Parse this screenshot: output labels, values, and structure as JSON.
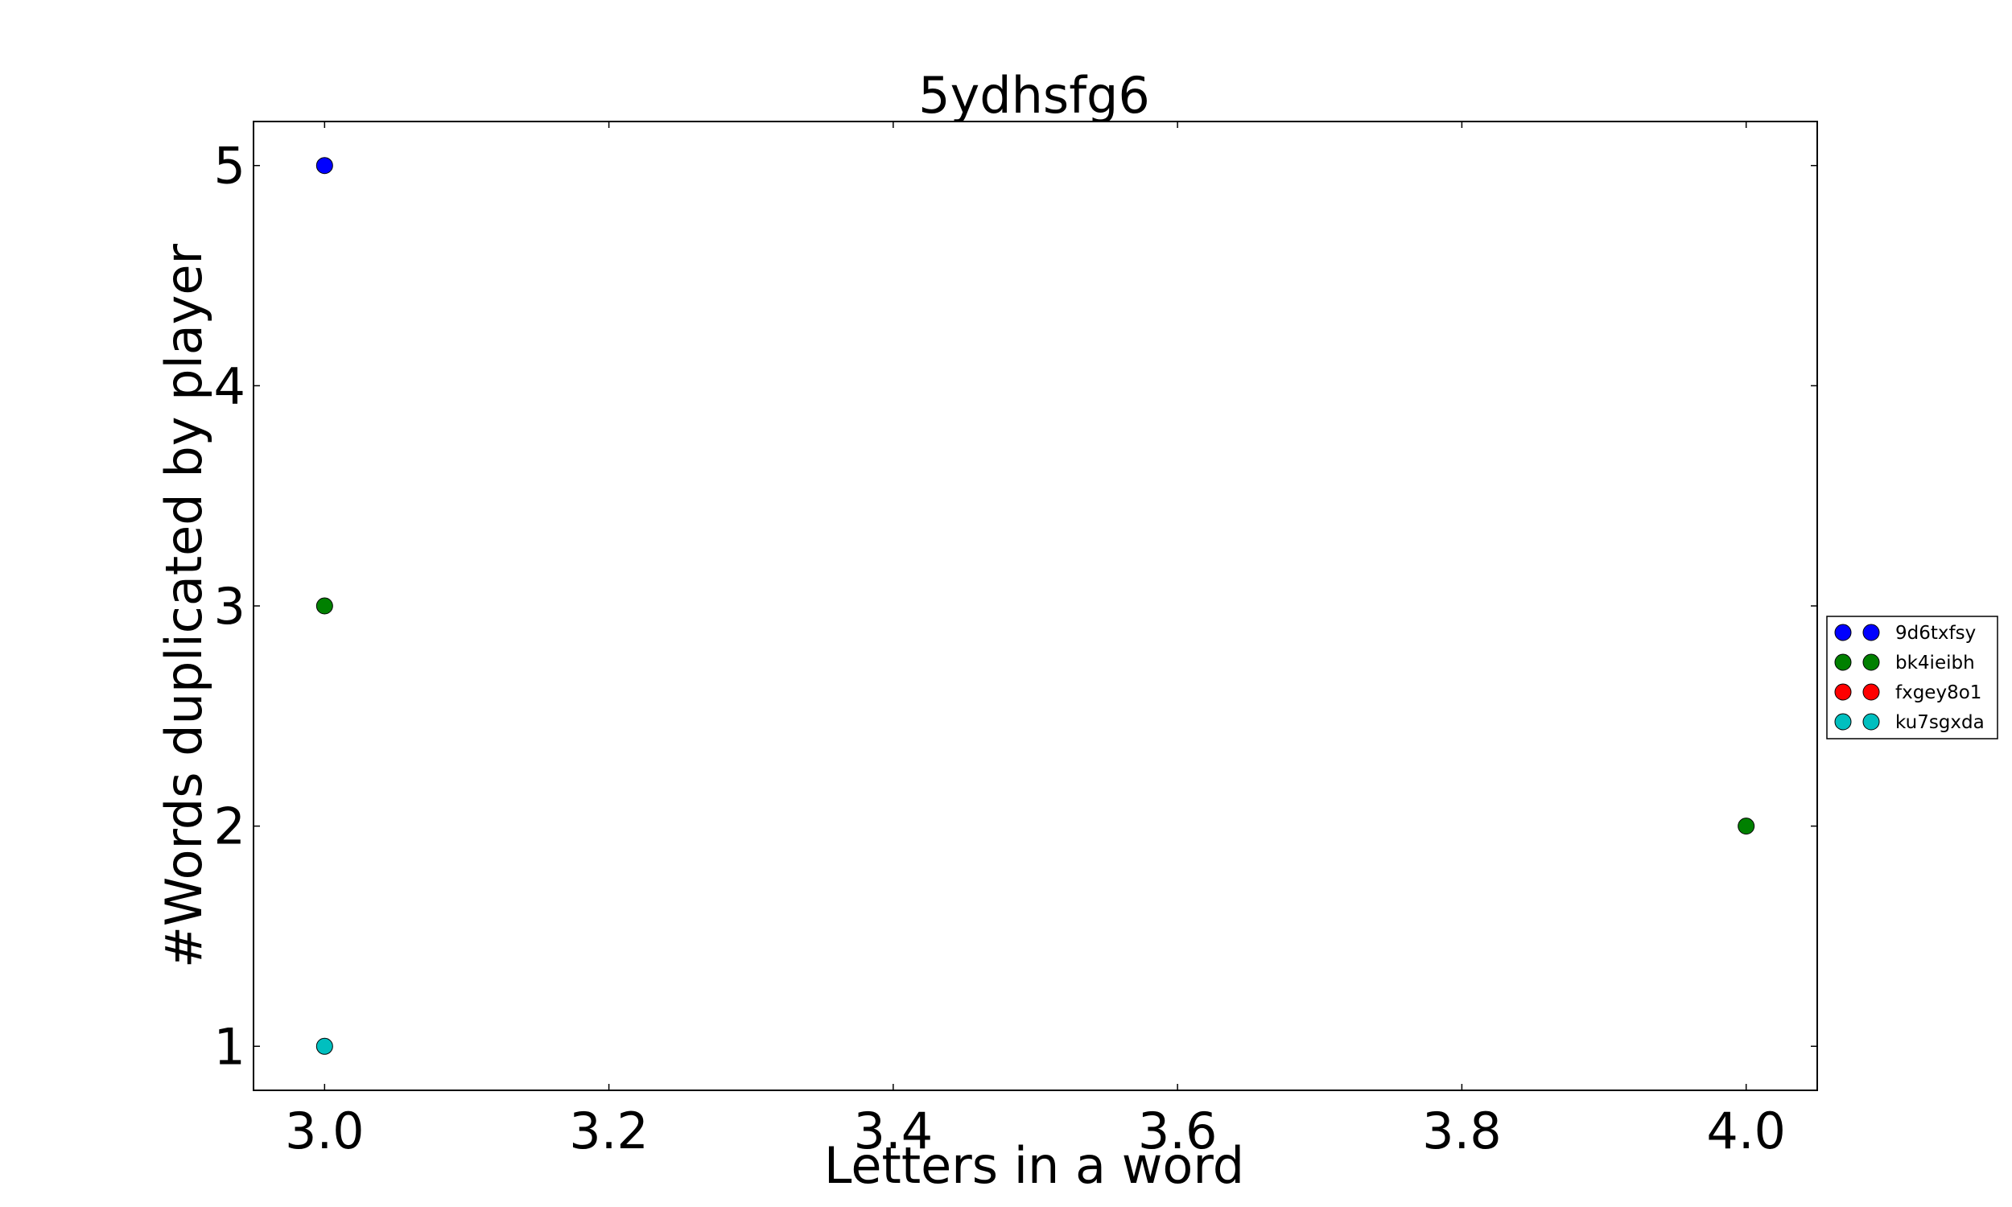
{
  "chart_data": {
    "type": "scatter",
    "title": "5ydhsfg6",
    "xlabel": "Letters in a word",
    "ylabel": "#Words duplicated by player",
    "xlim": [
      2.95,
      4.05
    ],
    "ylim": [
      0.8,
      5.2
    ],
    "x_ticks": [
      3.0,
      3.2,
      3.4,
      3.6,
      3.8,
      4.0
    ],
    "x_tick_labels": [
      "3.0",
      "3.2",
      "3.4",
      "3.6",
      "3.8",
      "4.0"
    ],
    "y_ticks": [
      1,
      2,
      3,
      4,
      5
    ],
    "y_tick_labels": [
      "1",
      "2",
      "3",
      "4",
      "5"
    ],
    "grid": false,
    "legend_position": "right-outside",
    "series": [
      {
        "name": "9d6txfsy",
        "color": "#0000ff",
        "points": [
          [
            3.0,
            5
          ]
        ]
      },
      {
        "name": "bk4ieibh",
        "color": "#008000",
        "points": [
          [
            3.0,
            3
          ],
          [
            4.0,
            2
          ]
        ]
      },
      {
        "name": "fxgey8o1",
        "color": "#ff0000",
        "points": []
      },
      {
        "name": "ku7sgxda",
        "color": "#00bfbf",
        "points": [
          [
            3.0,
            1
          ]
        ]
      }
    ]
  }
}
